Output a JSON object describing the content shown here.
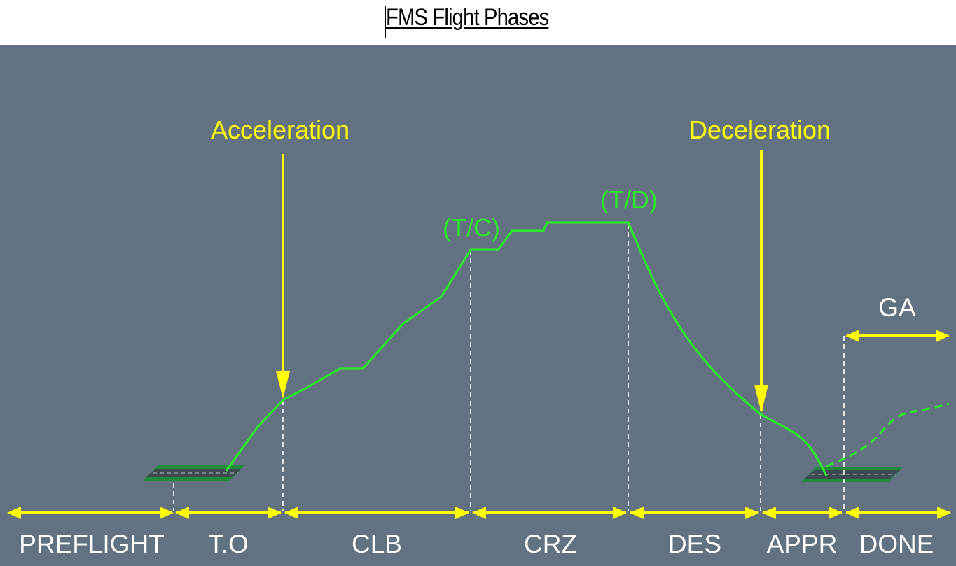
{
  "title": "FMS Flight Phases",
  "annotations": {
    "acceleration": "Acceleration",
    "deceleration": "Deceleration",
    "top_of_climb": "(T/C)",
    "top_of_descent": "(T/D)",
    "go_around": "GA"
  },
  "phases": [
    {
      "label": "PREFLIGHT"
    },
    {
      "label": "T.O"
    },
    {
      "label": "CLB"
    },
    {
      "label": "CRZ"
    },
    {
      "label": "DES"
    },
    {
      "label": "APPR"
    },
    {
      "label": "DONE"
    }
  ],
  "colors": {
    "panel": "#627280",
    "arrow": "#ffff00",
    "flight_path": "#2ee82e",
    "phase_text": "#ffffff",
    "runway": "#1a7a3a"
  }
}
